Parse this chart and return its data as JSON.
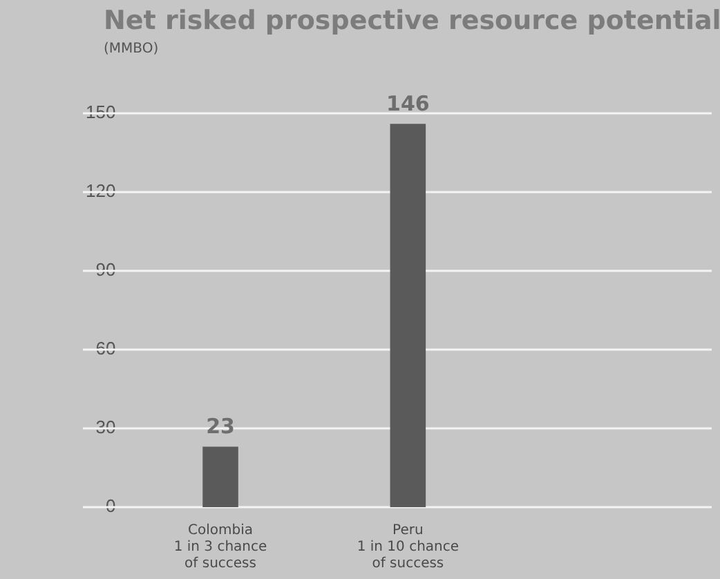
{
  "chart_data": {
    "type": "bar",
    "title": "Net risked prospective resource potential",
    "subtitle": "(MMBO)",
    "categories": [
      "Colombia\n1 in 3 chance\nof success",
      "Peru\n1 in 10 chance\nof success"
    ],
    "values": [
      23,
      146
    ],
    "color": "#5a5a5a",
    "ylim": [
      0,
      150
    ],
    "yticks": [
      0,
      30,
      60,
      90,
      120,
      150
    ],
    "grid": "y",
    "data_labels": true
  }
}
